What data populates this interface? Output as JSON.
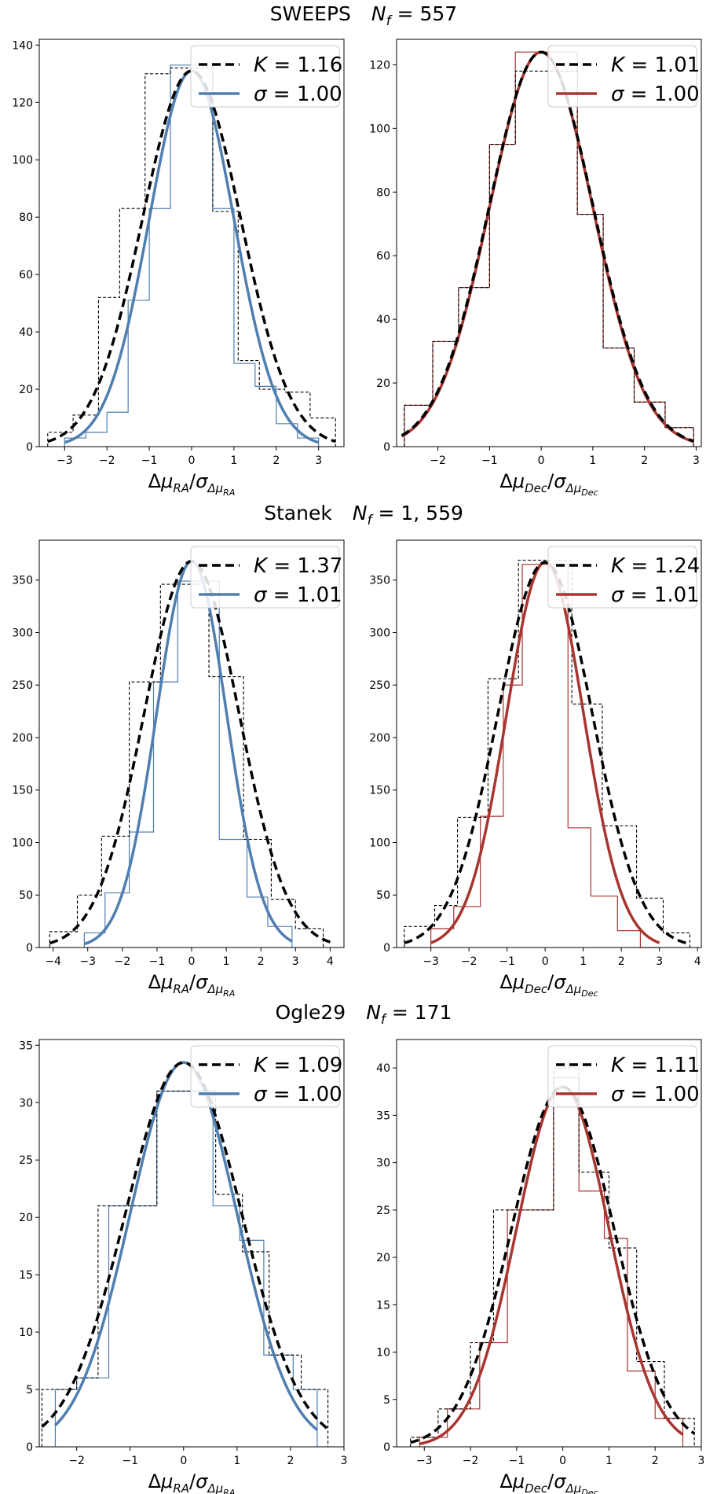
{
  "colors": {
    "ra": "#4f7fb0",
    "dec": "#a83530",
    "dash": "#000000"
  },
  "groups": [
    {
      "name": "SWEEPS",
      "nf_label": "N_f = 557",
      "nf_value": "557",
      "panels": [
        {
          "component": "ra",
          "xlabel": "Δμ_RA/σ_Δμ_RA",
          "xlim": [
            -3.6,
            3.6
          ],
          "ylim": [
            0,
            142
          ],
          "xticks": [
            -3,
            -2,
            -1,
            0,
            1,
            2,
            3
          ],
          "yticks": [
            0,
            20,
            40,
            60,
            80,
            100,
            120,
            140
          ],
          "hist_wide": {
            "edges": [
              -3.4,
              -2.8,
              -2.2,
              -1.7,
              -1.1,
              -0.5,
              0.5,
              1.1,
              1.6,
              2.2,
              2.8,
              3.4
            ],
            "counts": [
              5,
              11,
              52,
              83,
              130,
              132,
              82,
              30,
              20,
              19,
              10
            ]
          },
          "hist_narrow": {
            "edges": [
              -3.0,
              -2.5,
              -2.0,
              -1.5,
              -1.0,
              -0.5,
              0.5,
              1.0,
              1.5,
              2.0,
              2.5,
              3.0
            ],
            "counts": [
              3,
              5,
              12,
              51,
              83,
              133,
              83,
              29,
              21,
              8,
              3
            ]
          },
          "curve_wide": {
            "amplitude": 131,
            "sigma": 1.16,
            "range": [
              -3.4,
              3.4
            ]
          },
          "curve_narrow": {
            "amplitude": 131,
            "sigma": 1.0,
            "range": [
              -3.0,
              3.0
            ]
          },
          "legend": {
            "dash_label": "K = 1.16",
            "k_value": "1.16",
            "solid_label": "σ = 1.00",
            "sigma_value": "1.00"
          }
        },
        {
          "component": "dec",
          "xlabel": "Δμ_Dec/σ_Δμ_Dec",
          "xlim": [
            -2.8,
            3.1
          ],
          "ylim": [
            0,
            128
          ],
          "xticks": [
            -2,
            -1,
            0,
            1,
            2,
            3
          ],
          "yticks": [
            0,
            20,
            40,
            60,
            80,
            100,
            120
          ],
          "hist_wide": {
            "edges": [
              -2.65,
              -2.1,
              -1.6,
              -1.0,
              -0.5,
              0.7,
              1.2,
              1.8,
              2.4,
              2.95
            ],
            "counts": [
              13,
              33,
              50,
              95,
              118,
              73,
              31,
              14,
              6
            ]
          },
          "hist_narrow": {
            "edges": [
              -2.65,
              -2.1,
              -1.6,
              -1.0,
              -0.5,
              0.7,
              1.2,
              1.8,
              2.4,
              2.95
            ],
            "counts": [
              13,
              33,
              50,
              95,
              124,
              73,
              31,
              14,
              6
            ]
          },
          "curve_wide": {
            "amplitude": 124,
            "sigma": 1.01,
            "range": [
              -2.7,
              2.95
            ]
          },
          "curve_narrow": {
            "amplitude": 124,
            "sigma": 1.0,
            "range": [
              -2.7,
              2.95
            ]
          },
          "legend": {
            "dash_label": "K = 1.01",
            "k_value": "1.01",
            "solid_label": "σ = 1.00",
            "sigma_value": "1.00"
          }
        }
      ]
    },
    {
      "name": "Stanek",
      "nf_label": "N_f = 1,559",
      "nf_value": "1, 559",
      "panels": [
        {
          "component": "ra",
          "xlabel": "Δμ_RA/σ_Δμ_RA",
          "xlim": [
            -4.4,
            4.4
          ],
          "ylim": [
            0,
            388
          ],
          "xticks": [
            -4,
            -3,
            -2,
            -1,
            0,
            1,
            2,
            3,
            4
          ],
          "yticks": [
            0,
            50,
            100,
            150,
            200,
            250,
            300,
            350
          ],
          "hist_wide": {
            "edges": [
              -4.1,
              -3.3,
              -2.6,
              -1.8,
              -0.9,
              0.5,
              1.5,
              2.3,
              3.0,
              3.8
            ],
            "counts": [
              15,
              50,
              106,
              253,
              346,
              258,
              103,
              46,
              18
            ]
          },
          "hist_narrow": {
            "edges": [
              -3.1,
              -2.5,
              -1.8,
              -1.1,
              -0.4,
              0.8,
              1.6,
              2.2,
              2.9
            ],
            "counts": [
              14,
              52,
              110,
              253,
              349,
              103,
              48,
              20
            ]
          },
          "curve_wide": {
            "amplitude": 368,
            "sigma": 1.37,
            "range": [
              -4.1,
              4.1
            ]
          },
          "curve_narrow": {
            "amplitude": 368,
            "sigma": 1.01,
            "range": [
              -3.1,
              2.9
            ]
          },
          "legend": {
            "dash_label": "K = 1.37",
            "k_value": "1.37",
            "solid_label": "σ = 1.01",
            "sigma_value": "1.01"
          }
        },
        {
          "component": "dec",
          "xlabel": "Δμ_Dec/σ_Δμ_Dec",
          "xlim": [
            -3.9,
            4.1
          ],
          "ylim": [
            0,
            388
          ],
          "xticks": [
            -3,
            -2,
            -1,
            0,
            1,
            2,
            3,
            4
          ],
          "yticks": [
            0,
            50,
            100,
            150,
            200,
            250,
            300,
            350
          ],
          "hist_wide": {
            "edges": [
              -3.7,
              -2.9,
              -2.3,
              -1.5,
              -0.7,
              0.7,
              1.5,
              2.4,
              3.1,
              3.8
            ],
            "counts": [
              20,
              40,
              124,
              256,
              369,
              232,
              116,
              47,
              14
            ]
          },
          "hist_narrow": {
            "edges": [
              -3.0,
              -2.4,
              -1.7,
              -1.1,
              -0.6,
              0.6,
              1.2,
              1.9,
              2.5,
              3.0
            ],
            "counts": [
              18,
              39,
              125,
              250,
              365,
              114,
              49,
              16,
              0
            ]
          },
          "curve_wide": {
            "amplitude": 367,
            "sigma": 1.24,
            "range": [
              -3.7,
              3.8
            ]
          },
          "curve_narrow": {
            "amplitude": 367,
            "sigma": 1.01,
            "range": [
              -3.0,
              3.0
            ]
          },
          "legend": {
            "dash_label": "K = 1.24",
            "k_value": "1.24",
            "solid_label": "σ = 1.01",
            "sigma_value": "1.01"
          }
        }
      ]
    },
    {
      "name": "Ogle29",
      "nf_label": "N_f = 171",
      "nf_value": "171",
      "panels": [
        {
          "component": "ra",
          "xlabel": "Δμ_RA/σ_Δμ_RA",
          "xlim": [
            -2.7,
            3.0
          ],
          "ylim": [
            0,
            35.5
          ],
          "xticks": [
            -2,
            -1,
            0,
            1,
            2,
            3
          ],
          "yticks": [
            0,
            5,
            10,
            15,
            20,
            25,
            30,
            35
          ],
          "hist_wide": {
            "edges": [
              -2.65,
              -2.0,
              -1.6,
              -0.5,
              0.6,
              1.1,
              1.6,
              2.2,
              2.7
            ],
            "counts": [
              5,
              6,
              21,
              31,
              22,
              17,
              8,
              5
            ]
          },
          "hist_narrow": {
            "edges": [
              -2.4,
              -2.0,
              -1.4,
              -0.5,
              0.55,
              1.05,
              1.5,
              2.05,
              2.5
            ],
            "counts": [
              5,
              6,
              21,
              31,
              21,
              18,
              8,
              5
            ]
          },
          "curve_wide": {
            "amplitude": 33.5,
            "sigma": 1.09,
            "range": [
              -2.65,
              2.7
            ]
          },
          "curve_narrow": {
            "amplitude": 33.5,
            "sigma": 1.0,
            "range": [
              -2.4,
              2.5
            ]
          },
          "legend": {
            "dash_label": "K = 1.09",
            "k_value": "1.09",
            "solid_label": "σ = 1.00",
            "sigma_value": "1.00"
          }
        },
        {
          "component": "dec",
          "xlabel": "Δμ_Dec/σ_Δμ_Dec",
          "xlim": [
            -3.6,
            3.0
          ],
          "ylim": [
            0,
            43
          ],
          "xticks": [
            -3,
            -2,
            -1,
            0,
            1,
            2,
            3
          ],
          "yticks": [
            0,
            5,
            10,
            15,
            20,
            25,
            30,
            35,
            40
          ],
          "hist_wide": {
            "edges": [
              -3.3,
              -2.7,
              -2.0,
              -1.5,
              -0.2,
              0.35,
              1.0,
              1.6,
              2.2,
              2.85
            ],
            "counts": [
              1,
              4,
              11,
              25,
              40,
              29,
              21,
              9,
              3
            ]
          },
          "hist_narrow": {
            "edges": [
              -3.1,
              -2.5,
              -1.8,
              -1.2,
              -0.2,
              0.35,
              0.9,
              1.4,
              2.0,
              2.6
            ],
            "counts": [
              1,
              4,
              11,
              25,
              39,
              27,
              22,
              8,
              3
            ]
          },
          "curve_wide": {
            "amplitude": 38,
            "sigma": 1.11,
            "range": [
              -3.3,
              2.85
            ]
          },
          "curve_narrow": {
            "amplitude": 38,
            "sigma": 1.0,
            "range": [
              -3.1,
              2.6
            ]
          },
          "legend": {
            "dash_label": "K = 1.11",
            "k_value": "1.11",
            "solid_label": "σ = 1.00",
            "sigma_value": "1.00"
          }
        }
      ]
    }
  ],
  "chart_data": [
    {
      "type": "bar",
      "title": "SWEEPS N_f = 557 (RA)",
      "xlabel": "Δμ_RA/σ_Δμ_RA",
      "ylabel": "",
      "ylim": [
        0,
        142
      ],
      "legend": [
        "K = 1.16",
        "σ = 1.00"
      ]
    },
    {
      "type": "bar",
      "title": "SWEEPS N_f = 557 (Dec)",
      "xlabel": "Δμ_Dec/σ_Δμ_Dec",
      "ylabel": "",
      "ylim": [
        0,
        128
      ],
      "legend": [
        "K = 1.01",
        "σ = 1.00"
      ]
    },
    {
      "type": "bar",
      "title": "Stanek N_f = 1,559 (RA)",
      "xlabel": "Δμ_RA/σ_Δμ_RA",
      "ylabel": "",
      "ylim": [
        0,
        388
      ],
      "legend": [
        "K = 1.37",
        "σ = 1.01"
      ]
    },
    {
      "type": "bar",
      "title": "Stanek N_f = 1,559 (Dec)",
      "xlabel": "Δμ_Dec/σ_Δμ_Dec",
      "ylabel": "",
      "ylim": [
        0,
        388
      ],
      "legend": [
        "K = 1.24",
        "σ = 1.01"
      ]
    },
    {
      "type": "bar",
      "title": "Ogle29 N_f = 171 (RA)",
      "xlabel": "Δμ_RA/σ_Δμ_RA",
      "ylabel": "",
      "ylim": [
        0,
        35.5
      ],
      "legend": [
        "K = 1.09",
        "σ = 1.00"
      ]
    },
    {
      "type": "bar",
      "title": "Ogle29 N_f = 171 (Dec)",
      "xlabel": "Δμ_Dec/σ_Δμ_Dec",
      "ylabel": "",
      "ylim": [
        0,
        43
      ],
      "legend": [
        "K = 1.11",
        "σ = 1.00"
      ]
    }
  ]
}
